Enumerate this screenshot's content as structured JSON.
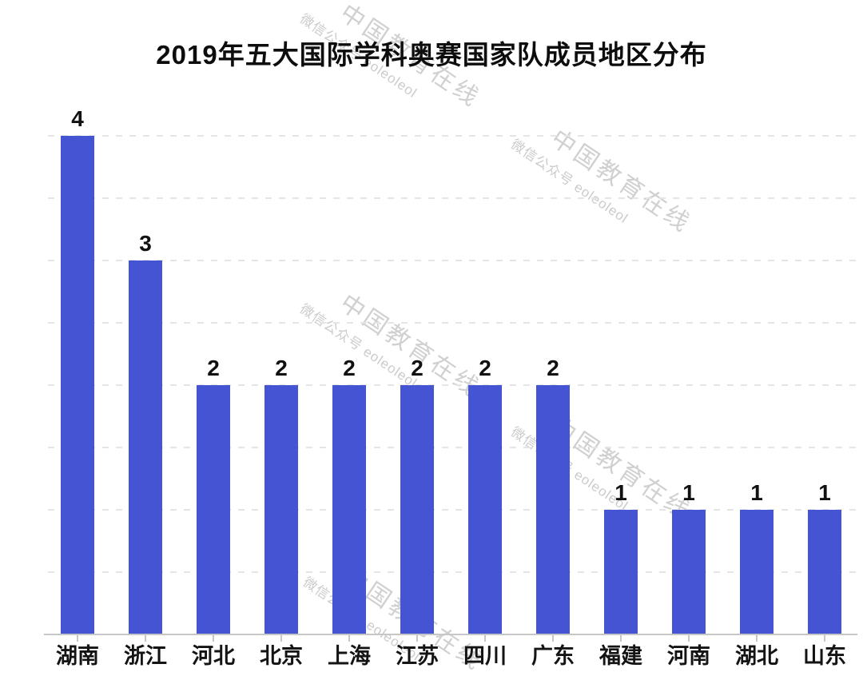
{
  "title": "2019年五大国际学科奥赛国家队成员地区分布",
  "watermark": {
    "line1": "中国教育在线",
    "line2": "微信公众号 eoleoleol",
    "color": "#d0d0d0"
  },
  "chart_data": {
    "type": "bar",
    "title": "2019年五大国际学科奥赛国家队成员地区分布",
    "categories": [
      "湖南",
      "浙江",
      "河北",
      "北京",
      "上海",
      "江苏",
      "四川",
      "广东",
      "福建",
      "河南",
      "湖北",
      "山东"
    ],
    "values": [
      4,
      3,
      2,
      2,
      2,
      2,
      2,
      2,
      1,
      1,
      1,
      1
    ],
    "value_labels": [
      "4",
      "3",
      "2",
      "2",
      "2",
      "2",
      "2",
      "2",
      "1",
      "1",
      "1",
      "1"
    ],
    "bar_color": "#4454d3",
    "text_color": "#111111",
    "xlabel": "",
    "ylabel": "",
    "ylim": [
      0,
      4
    ],
    "grid": "horizontal-dashed",
    "gridline_step": 0.5,
    "gridline_color": "#e5e5e5",
    "legend": "none"
  }
}
